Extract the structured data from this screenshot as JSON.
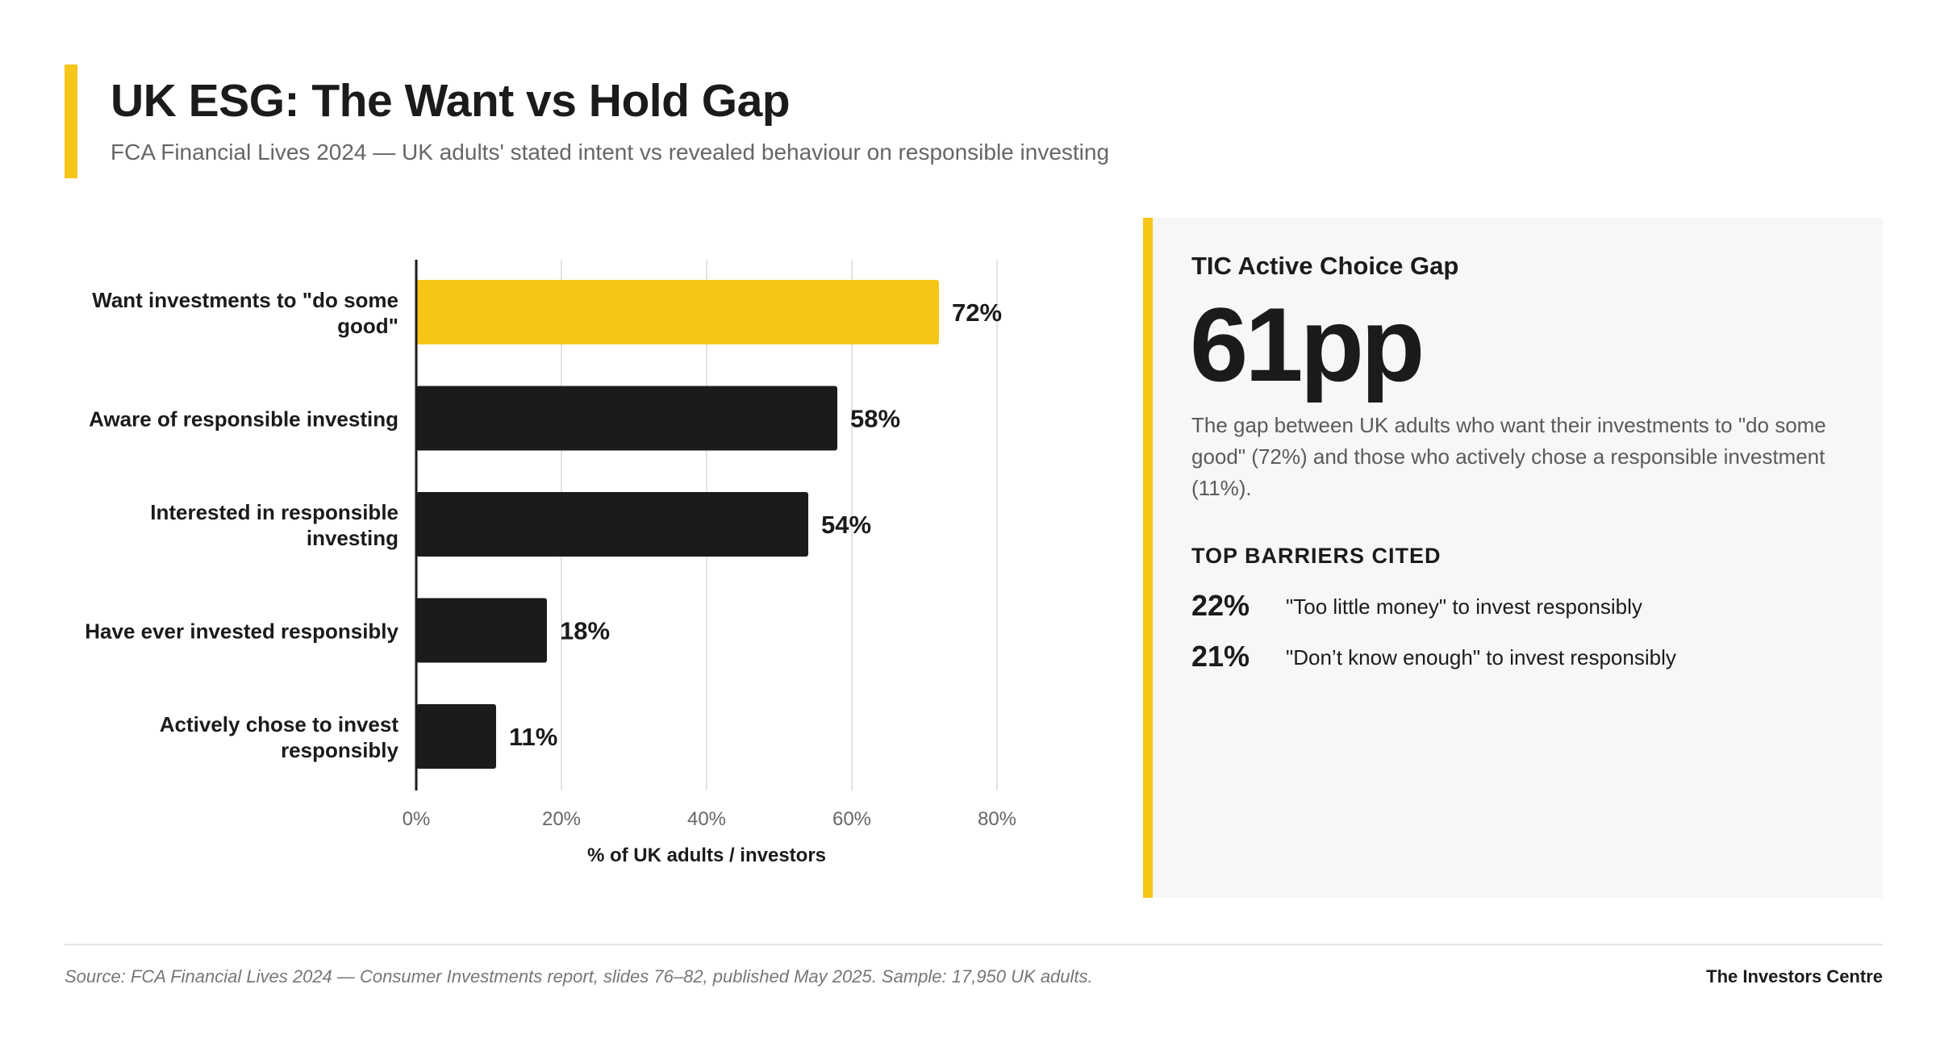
{
  "header": {
    "title": "UK ESG: The Want vs Hold Gap",
    "subtitle": "FCA Financial Lives 2024 — UK adults' stated intent vs revealed behaviour on responsible investing"
  },
  "chart_data": {
    "type": "bar",
    "orientation": "horizontal",
    "categories": [
      [
        "Want investments to \"do some",
        "good\""
      ],
      [
        "Aware of responsible investing"
      ],
      [
        "Interested in responsible",
        "investing"
      ],
      [
        "Have ever invested responsibly"
      ],
      [
        "Actively chose to invest",
        "responsibly"
      ]
    ],
    "values": [
      72,
      58,
      54,
      18,
      11
    ],
    "value_labels": [
      "72%",
      "58%",
      "54%",
      "18%",
      "11%"
    ],
    "highlight_index": 0,
    "xlabel": "% of UK adults / investors",
    "xticks": [
      "0%",
      "20%",
      "40%",
      "60%",
      "80%"
    ],
    "xlim": [
      0,
      80
    ],
    "grid": "vertical"
  },
  "colors": {
    "accent": "#f5c518",
    "bar": "#1b1b1b",
    "panel_bg": "#f7f7f7"
  },
  "panel": {
    "heading": "TIC Active Choice Gap",
    "big_number": "61pp",
    "description": "The gap between UK adults who want their investments to \"do some good\" (72%) and those who actively chose a responsible investment (11%).",
    "barriers_heading": "TOP BARRIERS CITED",
    "barriers": [
      {
        "pct": "22%",
        "text": "\"Too little money\" to invest responsibly"
      },
      {
        "pct": "21%",
        "text": "\"Don’t know enough\" to invest responsibly"
      }
    ]
  },
  "footer": {
    "source": "Source: FCA Financial Lives 2024 — Consumer Investments report, slides 76–82, published May 2025. Sample: 17,950 UK adults.",
    "brand": "The Investors Centre"
  }
}
